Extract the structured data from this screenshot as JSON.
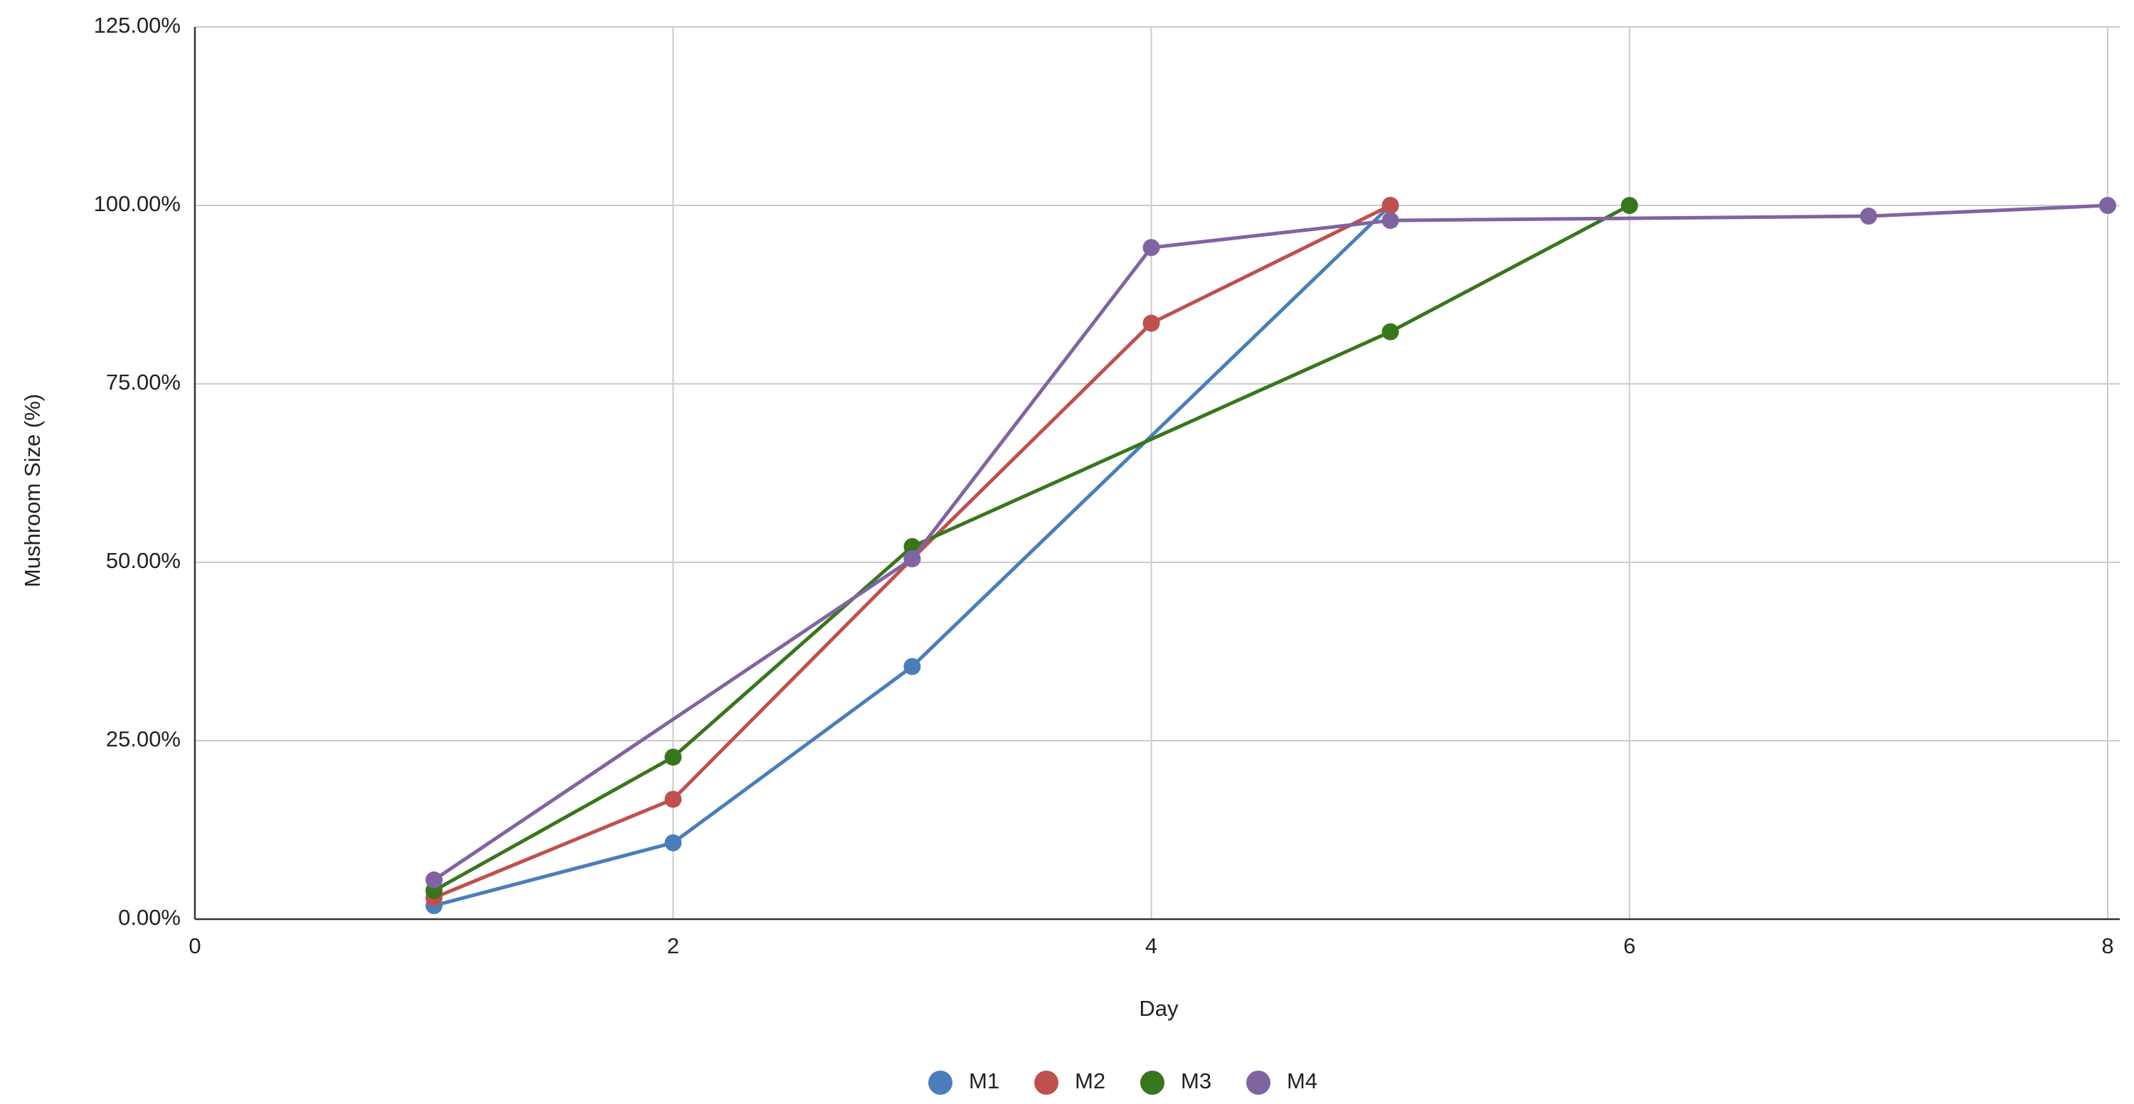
{
  "chart_data": {
    "type": "line",
    "x_label": "Day",
    "y_label": "Mushroom Size (%)",
    "xlim": [
      0,
      8
    ],
    "xticks": [
      0,
      2,
      4,
      6,
      8
    ],
    "ylim": [
      0,
      125
    ],
    "yticks": [
      {
        "value": 0,
        "label": "0.00%"
      },
      {
        "value": 25,
        "label": "25.00%"
      },
      {
        "value": 50,
        "label": "50.00%"
      },
      {
        "value": 75,
        "label": "75.00%"
      },
      {
        "value": 100,
        "label": "100.00%"
      },
      {
        "value": 125,
        "label": "125.00%"
      }
    ],
    "grid": true,
    "legend": "bottom",
    "series": [
      {
        "name": "M1",
        "color": "#4a7ebb",
        "x": [
          1,
          2,
          3,
          5
        ],
        "values": [
          1.9,
          10.7,
          35.4,
          100
        ]
      },
      {
        "name": "M2",
        "color": "#c0504d",
        "x": [
          1,
          2,
          3,
          4,
          5
        ],
        "values": [
          3.0,
          16.8,
          50.5,
          83.5,
          100
        ]
      },
      {
        "name": "M3",
        "color": "#38761d",
        "x": [
          1,
          2,
          3,
          5,
          6
        ],
        "values": [
          4.0,
          22.7,
          52.2,
          82.3,
          100
        ]
      },
      {
        "name": "M4",
        "color": "#8064a2",
        "x": [
          1,
          3,
          4,
          5,
          7,
          8
        ],
        "values": [
          5.5,
          50.5,
          94.1,
          97.9,
          98.5,
          100
        ]
      }
    ]
  }
}
